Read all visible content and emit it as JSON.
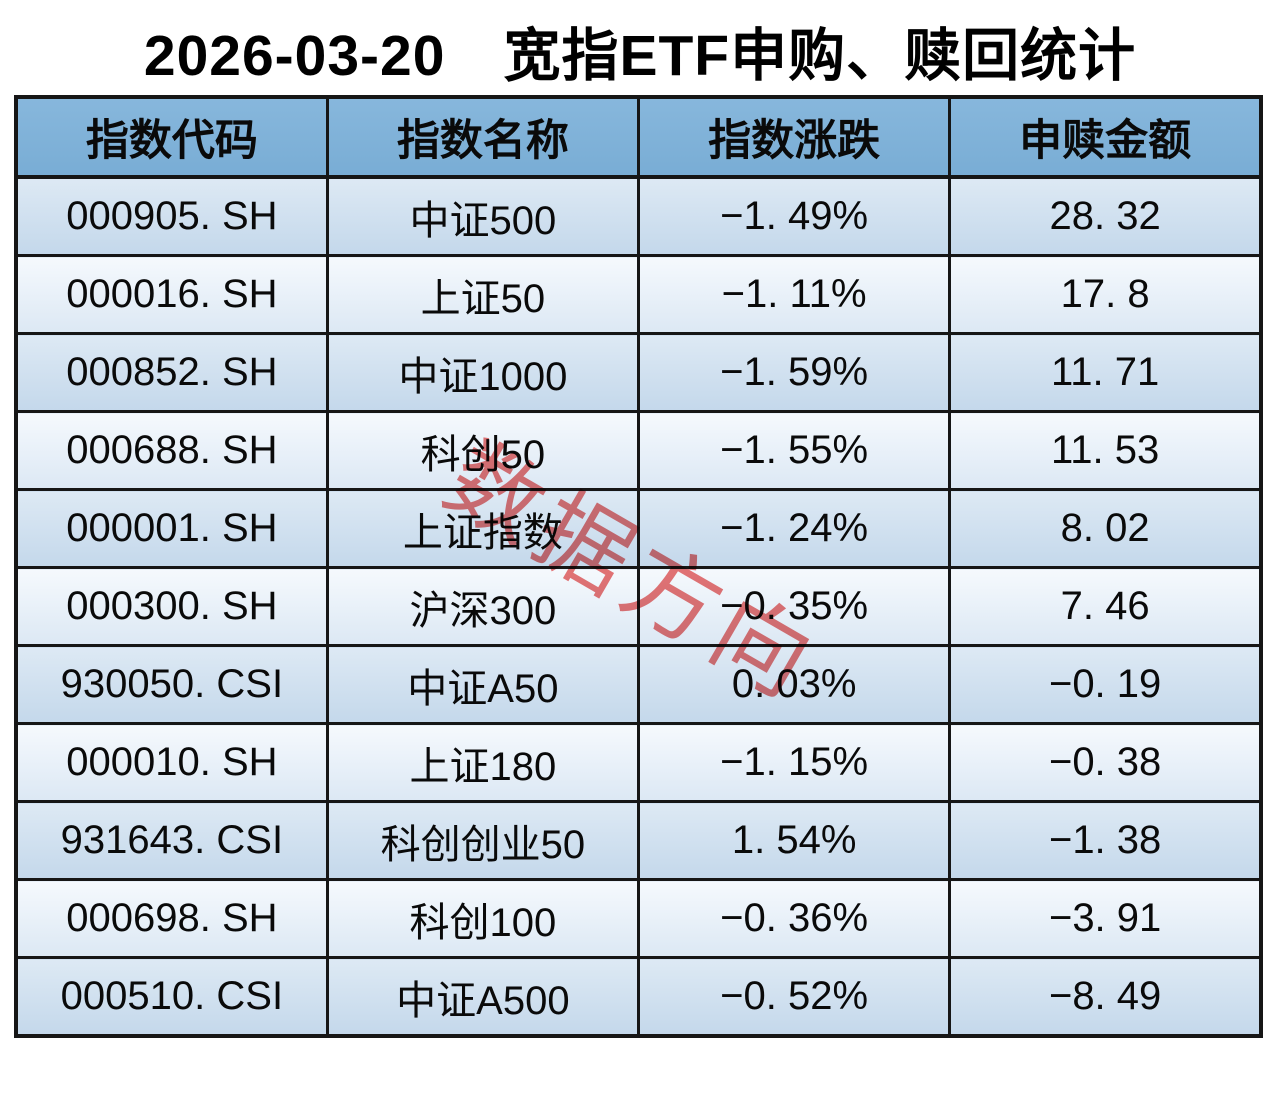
{
  "title": "2026-03-20　宽指ETF申购、赎回统计",
  "watermark": {
    "text": "数据方向",
    "color": "#E55353"
  },
  "table": {
    "columns": [
      "指数代码",
      "指数名称",
      "指数涨跌",
      "申赎金额"
    ],
    "column_keys": [
      "code",
      "name",
      "change",
      "amount"
    ],
    "rows": [
      {
        "code": "000905. SH",
        "name": "中证500",
        "change": "−1. 49%",
        "amount": "28. 32"
      },
      {
        "code": "000016. SH",
        "name": "上证50",
        "change": "−1. 11%",
        "amount": "17. 8"
      },
      {
        "code": "000852. SH",
        "name": "中证1000",
        "change": "−1. 59%",
        "amount": "11. 71"
      },
      {
        "code": "000688. SH",
        "name": "科创50",
        "change": "−1. 55%",
        "amount": "11. 53"
      },
      {
        "code": "000001. SH",
        "name": "上证指数",
        "change": "−1. 24%",
        "amount": "8. 02"
      },
      {
        "code": "000300. SH",
        "name": "沪深300",
        "change": "−0. 35%",
        "amount": "7. 46"
      },
      {
        "code": "930050. CSI",
        "name": "中证A50",
        "change": "0. 03%",
        "amount": "−0. 19"
      },
      {
        "code": "000010. SH",
        "name": "上证180",
        "change": "−1. 15%",
        "amount": "−0. 38"
      },
      {
        "code": "931643. CSI",
        "name": "科创创业50",
        "change": "1. 54%",
        "amount": "−1. 38"
      },
      {
        "code": "000698. SH",
        "name": "科创100",
        "change": "−0. 36%",
        "amount": "−3. 91"
      },
      {
        "code": "000510. CSI",
        "name": "中证A500",
        "change": "−0. 52%",
        "amount": "−8. 49"
      }
    ]
  },
  "colors": {
    "header_bg": "#7EB4DB",
    "row_odd_top": "#DDE9F4",
    "row_odd_bottom": "#C4D8EB",
    "row_even_top": "#F5F9FD",
    "row_even_bottom": "#DCE8F4",
    "border": "#161616",
    "watermark_red": "#E55353"
  },
  "chart_data": {
    "type": "table",
    "title": "2026-03-20 宽指ETF申购、赎回统计",
    "columns": [
      "指数代码",
      "指数名称",
      "指数涨跌",
      "申赎金额"
    ],
    "rows": [
      [
        "000905.SH",
        "中证500",
        -1.49,
        28.32
      ],
      [
        "000016.SH",
        "上证50",
        -1.11,
        17.8
      ],
      [
        "000852.SH",
        "中证1000",
        -1.59,
        11.71
      ],
      [
        "000688.SH",
        "科创50",
        -1.55,
        11.53
      ],
      [
        "000001.SH",
        "上证指数",
        -1.24,
        8.02
      ],
      [
        "000300.SH",
        "沪深300",
        -0.35,
        7.46
      ],
      [
        "930050.CSI",
        "中证A50",
        0.03,
        -0.19
      ],
      [
        "000010.SH",
        "上证180",
        -1.15,
        -0.38
      ],
      [
        "931643.CSI",
        "科创创业50",
        1.54,
        -1.38
      ],
      [
        "000698.SH",
        "科创100",
        -0.36,
        -3.91
      ],
      [
        "000510.CSI",
        "中证A500",
        -0.52,
        -8.49
      ]
    ],
    "change_unit": "%",
    "watermark": "数据方向"
  }
}
